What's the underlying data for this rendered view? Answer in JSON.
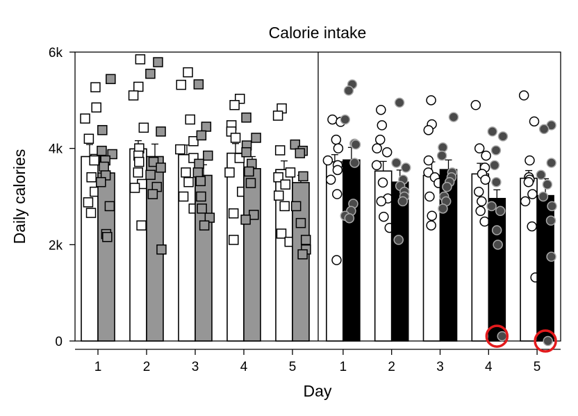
{
  "chart_data": {
    "type": "bar",
    "title": "Calorie intake",
    "xlabel": "Day",
    "ylabel": "Daily calories",
    "ylim": [
      0,
      6000
    ],
    "yticks": [
      0,
      2000,
      4000,
      6000
    ],
    "ytick_labels": [
      "0",
      "2k",
      "4k",
      "6k"
    ],
    "grid": false,
    "legend": "none",
    "colors": {
      "open_fill": "#ffffff",
      "gray_fill": "#969696",
      "black_fill": "#000000",
      "dark_point": "#4a4a4a",
      "highlight": "#e31a1c",
      "stroke": "#000000"
    },
    "panels": [
      {
        "categories": [
          "1",
          "2",
          "3",
          "4",
          "5"
        ],
        "marker": "square",
        "series": [
          {
            "style": "open",
            "means": [
              3830,
              3990,
              3870,
              3900,
              3560
            ],
            "errors": [
              250,
              170,
              200,
              200,
              180
            ],
            "points": [
              [
                5270,
                4850,
                4620,
                4200,
                3780,
                3750,
                3400,
                3100,
                2880,
                2660
              ],
              [
                5850,
                5280,
                5100,
                4430,
                4000,
                3850,
                3720,
                3500,
                3260,
                3180,
                2400
              ],
              [
                5580,
                5320,
                4600,
                4150,
                3980,
                3800,
                3500,
                3300,
                3000,
                2750
              ],
              [
                5030,
                4900,
                4480,
                4350,
                4220,
                3800,
                3500,
                3100,
                2650,
                2100
              ],
              [
                4830,
                4680,
                3960,
                3500,
                3400,
                3250,
                3020,
                2800,
                2230,
                2060
              ]
            ]
          },
          {
            "style": "gray",
            "means": [
              3490,
              3830,
              3440,
              3580,
              3290
            ],
            "errors": [
              240,
              260,
              220,
              250,
              150
            ],
            "points": [
              [
                5440,
                4380,
                3950,
                3880,
                3750,
                3620,
                3440,
                3300,
                2800,
                2220,
                2160
              ],
              [
                5790,
                5550,
                4350,
                3720,
                3600,
                3450,
                3200,
                3050,
                1900
              ],
              [
                5330,
                4450,
                4270,
                3850,
                3680,
                3500,
                3320,
                3000,
                2750,
                2560,
                2400
              ],
              [
                4640,
                4220,
                4060,
                3920,
                3680,
                3520,
                3280,
                2620,
                2520
              ],
              [
                4080,
                3950,
                3900,
                3420,
                2800,
                2450,
                2100,
                1900,
                1800
              ]
            ]
          }
        ]
      },
      {
        "categories": [
          "1",
          "2",
          "3",
          "4",
          "5"
        ],
        "marker": "circle",
        "series": [
          {
            "style": "open",
            "means": [
              3720,
              3530,
              3440,
              3470,
              3380
            ],
            "errors": [
              150,
              200,
              280,
              220,
              160
            ],
            "points": [
              [
                4600,
                4550,
                4180,
                4000,
                3750,
                3650,
                3550,
                3350,
                3050,
                1680
              ],
              [
                4800,
                4480,
                4180,
                4000,
                3920,
                3650,
                3290,
                2960,
                2900,
                2580,
                2350
              ],
              [
                5000,
                4500,
                4380,
                3750,
                3500,
                3400,
                3280,
                3000,
                2600,
                2400
              ],
              [
                4900,
                4000,
                3850,
                3600,
                3470,
                3350,
                3100,
                2900,
                2700,
                2480
              ],
              [
                5100,
                4560,
                3750,
                3400,
                3350,
                3300,
                3050,
                2900,
                2380,
                1320
              ]
            ]
          },
          {
            "style": "black",
            "means": [
              3760,
              3300,
              3560,
              2960,
              3020
            ],
            "errors": [
              260,
              250,
              200,
              180,
              350
            ],
            "points": [
              [
                5330,
                5200,
                4600,
                4100,
                4080,
                3700,
                2850,
                2700,
                2600,
                2550
              ],
              [
                4950,
                3700,
                3600,
                3350,
                3220,
                3100,
                3000,
                2900,
                2100
              ],
              [
                4650,
                4020,
                3850,
                3500,
                3400,
                3300,
                3200,
                3000,
                2900,
                2750
              ],
              [
                4350,
                4250,
                3960,
                3650,
                3300,
                2800,
                2700,
                2300,
                2000,
                100
              ],
              [
                4480,
                4400,
                3700,
                3450,
                3250,
                3000,
                2800,
                2500,
                1750,
                0
              ]
            ]
          }
        ]
      }
    ],
    "highlighted": [
      "4",
      "5"
    ]
  }
}
